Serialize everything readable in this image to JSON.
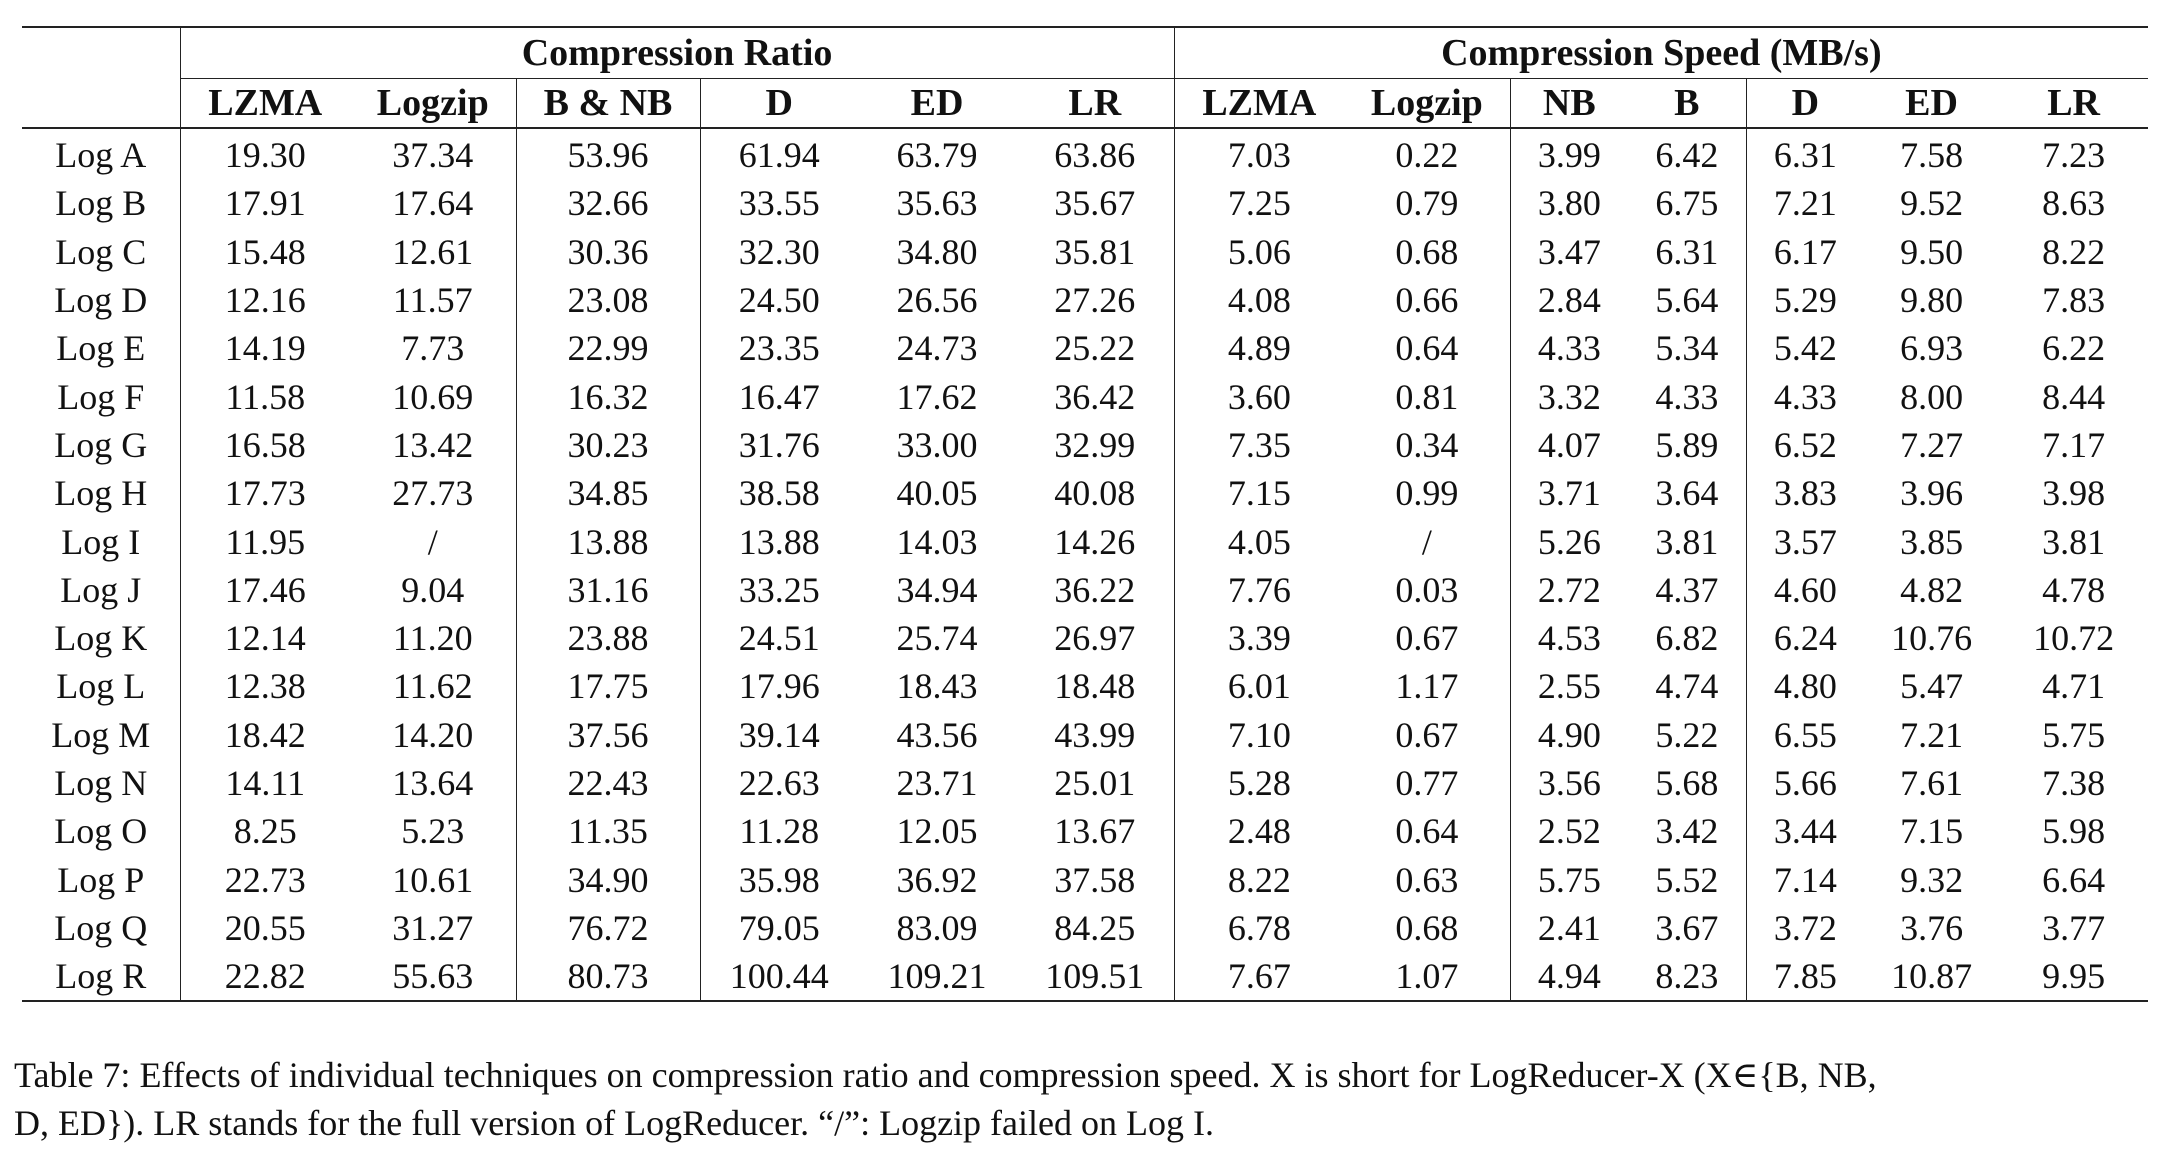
{
  "table": {
    "groups": [
      {
        "label": "Compression Ratio",
        "span": 6
      },
      {
        "label": "Compression Speed (MB/s)",
        "span": 7
      }
    ],
    "ratio_columns": [
      "LZMA",
      "Logzip",
      "B & NB",
      "D",
      "ED",
      "LR"
    ],
    "speed_columns": [
      "LZMA",
      "Logzip",
      "NB",
      "B",
      "D",
      "ED",
      "LR"
    ],
    "rows": [
      {
        "label": "Log A",
        "ratio": [
          "19.30",
          "37.34",
          "53.96",
          "61.94",
          "63.79",
          "63.86"
        ],
        "speed": [
          "7.03",
          "0.22",
          "3.99",
          "6.42",
          "6.31",
          "7.58",
          "7.23"
        ]
      },
      {
        "label": "Log B",
        "ratio": [
          "17.91",
          "17.64",
          "32.66",
          "33.55",
          "35.63",
          "35.67"
        ],
        "speed": [
          "7.25",
          "0.79",
          "3.80",
          "6.75",
          "7.21",
          "9.52",
          "8.63"
        ]
      },
      {
        "label": "Log C",
        "ratio": [
          "15.48",
          "12.61",
          "30.36",
          "32.30",
          "34.80",
          "35.81"
        ],
        "speed": [
          "5.06",
          "0.68",
          "3.47",
          "6.31",
          "6.17",
          "9.50",
          "8.22"
        ]
      },
      {
        "label": "Log D",
        "ratio": [
          "12.16",
          "11.57",
          "23.08",
          "24.50",
          "26.56",
          "27.26"
        ],
        "speed": [
          "4.08",
          "0.66",
          "2.84",
          "5.64",
          "5.29",
          "9.80",
          "7.83"
        ]
      },
      {
        "label": "Log E",
        "ratio": [
          "14.19",
          "7.73",
          "22.99",
          "23.35",
          "24.73",
          "25.22"
        ],
        "speed": [
          "4.89",
          "0.64",
          "4.33",
          "5.34",
          "5.42",
          "6.93",
          "6.22"
        ]
      },
      {
        "label": "Log F",
        "ratio": [
          "11.58",
          "10.69",
          "16.32",
          "16.47",
          "17.62",
          "36.42"
        ],
        "speed": [
          "3.60",
          "0.81",
          "3.32",
          "4.33",
          "4.33",
          "8.00",
          "8.44"
        ]
      },
      {
        "label": "Log G",
        "ratio": [
          "16.58",
          "13.42",
          "30.23",
          "31.76",
          "33.00",
          "32.99"
        ],
        "speed": [
          "7.35",
          "0.34",
          "4.07",
          "5.89",
          "6.52",
          "7.27",
          "7.17"
        ]
      },
      {
        "label": "Log H",
        "ratio": [
          "17.73",
          "27.73",
          "34.85",
          "38.58",
          "40.05",
          "40.08"
        ],
        "speed": [
          "7.15",
          "0.99",
          "3.71",
          "3.64",
          "3.83",
          "3.96",
          "3.98"
        ]
      },
      {
        "label": "Log I",
        "ratio": [
          "11.95",
          "/",
          "13.88",
          "13.88",
          "14.03",
          "14.26"
        ],
        "speed": [
          "4.05",
          "/",
          "5.26",
          "3.81",
          "3.57",
          "3.85",
          "3.81"
        ]
      },
      {
        "label": "Log J",
        "ratio": [
          "17.46",
          "9.04",
          "31.16",
          "33.25",
          "34.94",
          "36.22"
        ],
        "speed": [
          "7.76",
          "0.03",
          "2.72",
          "4.37",
          "4.60",
          "4.82",
          "4.78"
        ]
      },
      {
        "label": "Log K",
        "ratio": [
          "12.14",
          "11.20",
          "23.88",
          "24.51",
          "25.74",
          "26.97"
        ],
        "speed": [
          "3.39",
          "0.67",
          "4.53",
          "6.82",
          "6.24",
          "10.76",
          "10.72"
        ]
      },
      {
        "label": "Log L",
        "ratio": [
          "12.38",
          "11.62",
          "17.75",
          "17.96",
          "18.43",
          "18.48"
        ],
        "speed": [
          "6.01",
          "1.17",
          "2.55",
          "4.74",
          "4.80",
          "5.47",
          "4.71"
        ]
      },
      {
        "label": "Log M",
        "ratio": [
          "18.42",
          "14.20",
          "37.56",
          "39.14",
          "43.56",
          "43.99"
        ],
        "speed": [
          "7.10",
          "0.67",
          "4.90",
          "5.22",
          "6.55",
          "7.21",
          "5.75"
        ]
      },
      {
        "label": "Log N",
        "ratio": [
          "14.11",
          "13.64",
          "22.43",
          "22.63",
          "23.71",
          "25.01"
        ],
        "speed": [
          "5.28",
          "0.77",
          "3.56",
          "5.68",
          "5.66",
          "7.61",
          "7.38"
        ]
      },
      {
        "label": "Log O",
        "ratio": [
          "8.25",
          "5.23",
          "11.35",
          "11.28",
          "12.05",
          "13.67"
        ],
        "speed": [
          "2.48",
          "0.64",
          "2.52",
          "3.42",
          "3.44",
          "7.15",
          "5.98"
        ]
      },
      {
        "label": "Log P",
        "ratio": [
          "22.73",
          "10.61",
          "34.90",
          "35.98",
          "36.92",
          "37.58"
        ],
        "speed": [
          "8.22",
          "0.63",
          "5.75",
          "5.52",
          "7.14",
          "9.32",
          "6.64"
        ]
      },
      {
        "label": "Log Q",
        "ratio": [
          "20.55",
          "31.27",
          "76.72",
          "79.05",
          "83.09",
          "84.25"
        ],
        "speed": [
          "6.78",
          "0.68",
          "2.41",
          "3.67",
          "3.72",
          "3.76",
          "3.77"
        ]
      },
      {
        "label": "Log R",
        "ratio": [
          "22.82",
          "55.63",
          "80.73",
          "100.44",
          "109.21",
          "109.51"
        ],
        "speed": [
          "7.67",
          "1.07",
          "4.94",
          "8.23",
          "7.85",
          "10.87",
          "9.95"
        ]
      }
    ]
  },
  "caption": {
    "line1": "Table 7: Effects of individual techniques on compression ratio and compression speed. X is short for LogReducer-X (X∈{B, NB,",
    "line2": "D, ED}). LR stands for the full version of LogReducer. “/”: Logzip failed on Log I."
  }
}
